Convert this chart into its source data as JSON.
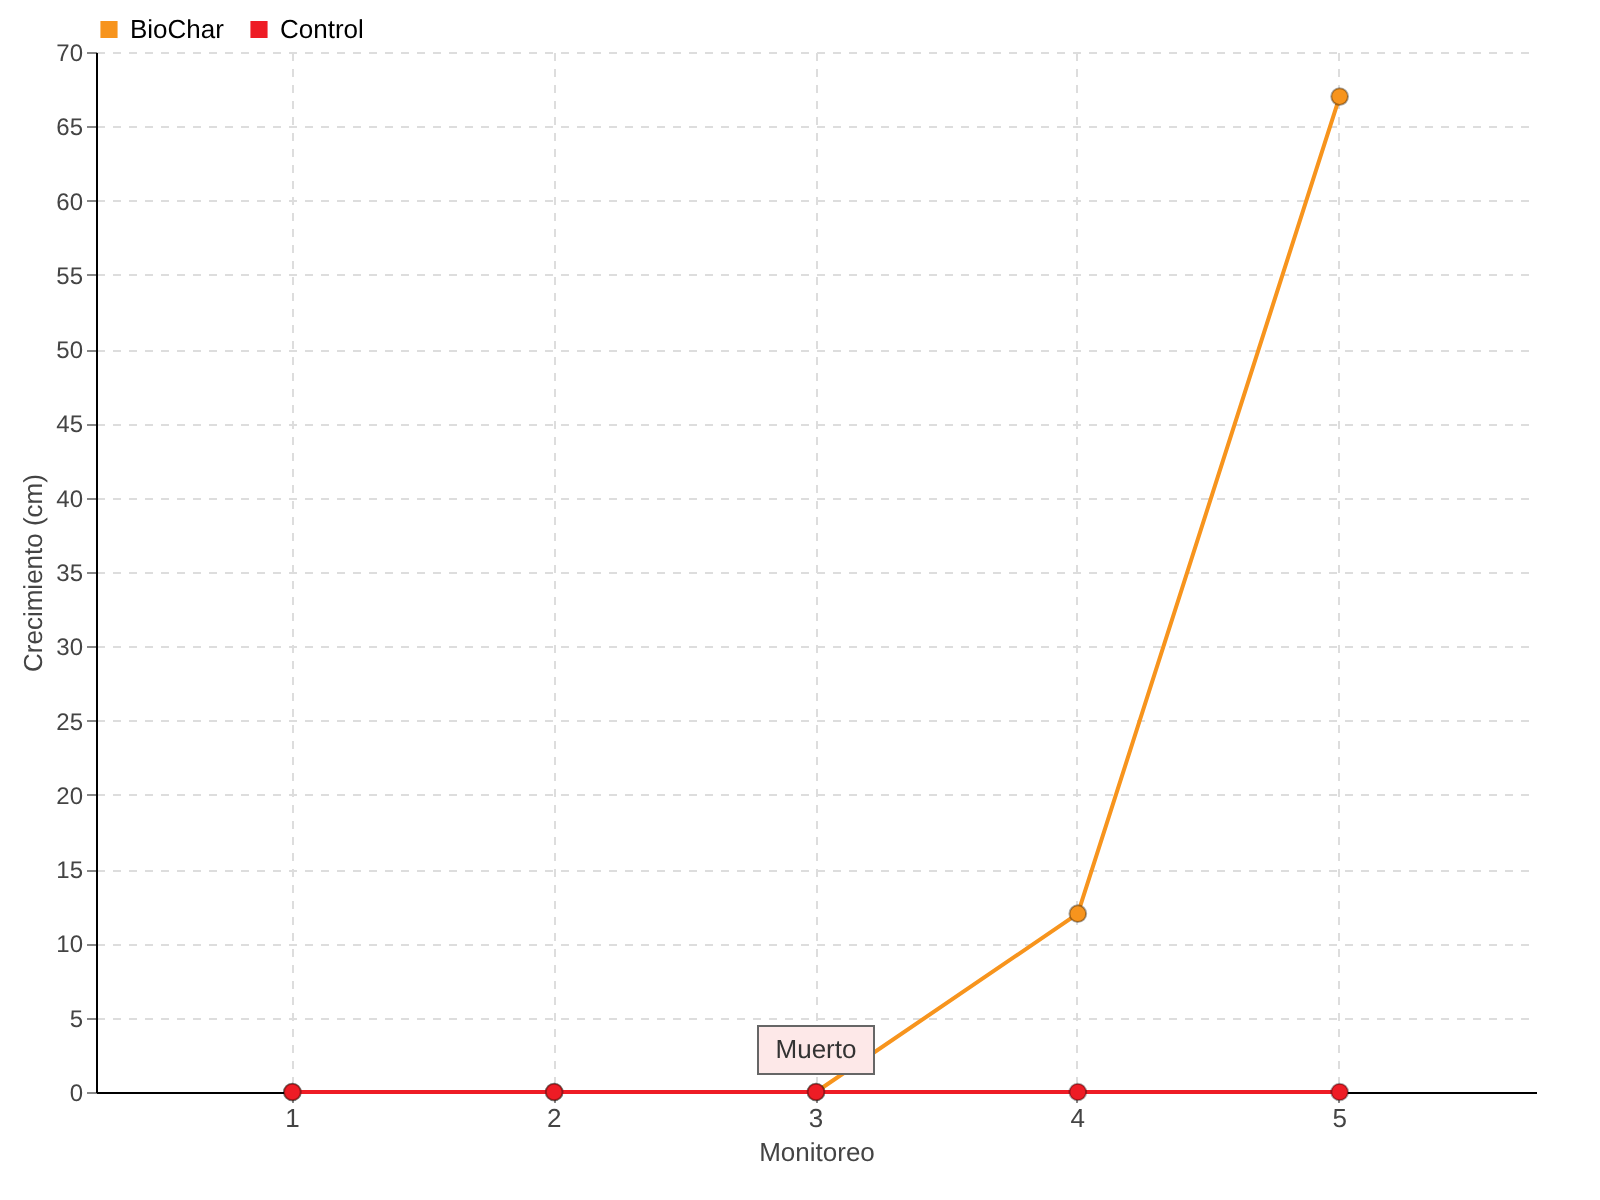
{
  "chart_data": {
    "type": "line",
    "xlabel": "Monitoreo",
    "ylabel": "Crecimiento (cm)",
    "categories": [
      "1",
      "2",
      "3",
      "4",
      "5"
    ],
    "series": [
      {
        "name": "BioChar",
        "color": "#f7941d",
        "values": [
          0,
          0,
          0,
          12,
          67
        ]
      },
      {
        "name": "Control",
        "color": "#ee1c25",
        "values": [
          0,
          0,
          0,
          0,
          0
        ]
      }
    ],
    "ylim": [
      0,
      70
    ],
    "yticks": [
      0,
      5,
      10,
      15,
      20,
      25,
      30,
      35,
      40,
      45,
      50,
      55,
      60,
      65,
      70
    ],
    "grid": true,
    "legend": "top left",
    "marker": "circle",
    "line_style": "solid",
    "annotations": [
      {
        "text": "Muerto",
        "x": "3",
        "y": 0
      }
    ]
  }
}
